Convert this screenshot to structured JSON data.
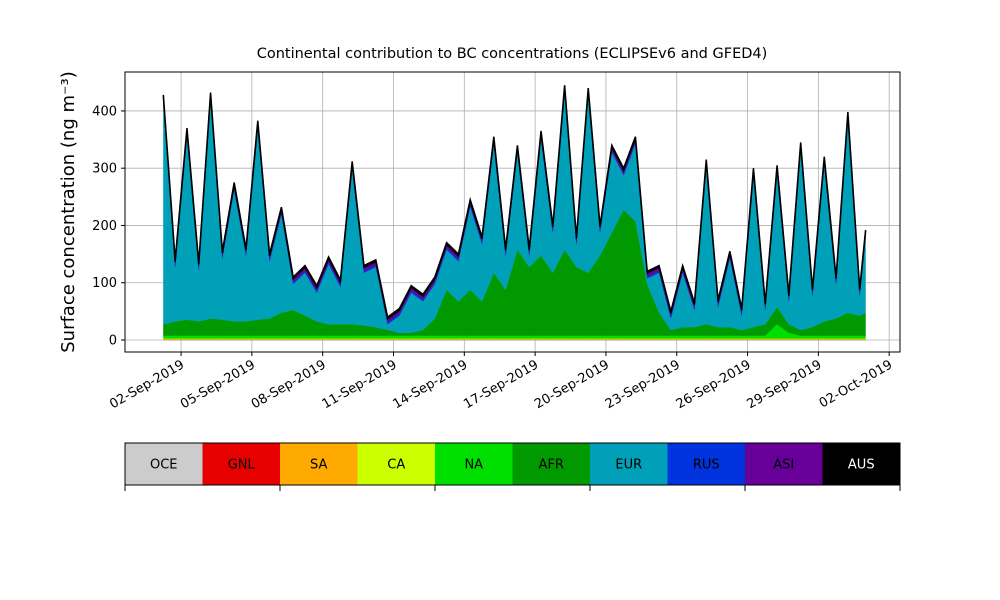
{
  "chart_data": {
    "type": "stacked_area",
    "title": "Continental contribution to BC concentrations (ECLIPSEv6 and GFED4)",
    "ylabel": "Surface concentration (ng m⁻³)",
    "x": [
      "2019-09-01T06:00",
      "2019-09-01T18:00",
      "2019-09-02T06:00",
      "2019-09-02T18:00",
      "2019-09-03T06:00",
      "2019-09-03T18:00",
      "2019-09-04T06:00",
      "2019-09-04T18:00",
      "2019-09-05T06:00",
      "2019-09-05T18:00",
      "2019-09-06T06:00",
      "2019-09-06T18:00",
      "2019-09-07T06:00",
      "2019-09-07T18:00",
      "2019-09-08T06:00",
      "2019-09-08T18:00",
      "2019-09-09T06:00",
      "2019-09-09T18:00",
      "2019-09-10T06:00",
      "2019-09-10T18:00",
      "2019-09-11T06:00",
      "2019-09-11T18:00",
      "2019-09-12T06:00",
      "2019-09-12T18:00",
      "2019-09-13T06:00",
      "2019-09-13T18:00",
      "2019-09-14T06:00",
      "2019-09-14T18:00",
      "2019-09-15T06:00",
      "2019-09-15T18:00",
      "2019-09-16T06:00",
      "2019-09-16T18:00",
      "2019-09-17T06:00",
      "2019-09-17T18:00",
      "2019-09-18T06:00",
      "2019-09-18T18:00",
      "2019-09-19T06:00",
      "2019-09-19T18:00",
      "2019-09-20T06:00",
      "2019-09-20T18:00",
      "2019-09-21T06:00",
      "2019-09-21T18:00",
      "2019-09-22T06:00",
      "2019-09-22T18:00",
      "2019-09-23T06:00",
      "2019-09-23T18:00",
      "2019-09-24T06:00",
      "2019-09-24T18:00",
      "2019-09-25T06:00",
      "2019-09-25T18:00",
      "2019-09-26T06:00",
      "2019-09-26T18:00",
      "2019-09-27T06:00",
      "2019-09-27T18:00",
      "2019-09-28T06:00",
      "2019-09-28T18:00",
      "2019-09-29T06:00",
      "2019-09-29T18:00",
      "2019-09-30T06:00",
      "2019-09-30T18:00",
      "2019-10-01T00:00"
    ],
    "series": [
      {
        "name": "OCE",
        "color": "#cccccc",
        "values": [
          0,
          0,
          0,
          0,
          0,
          0,
          0,
          0,
          0,
          0,
          0,
          0,
          0,
          0,
          0,
          0,
          0,
          0,
          0,
          0,
          0,
          0,
          0,
          0,
          0,
          0,
          0,
          0,
          0,
          0,
          0,
          0,
          0,
          0,
          0,
          0,
          0,
          0,
          0,
          0,
          0,
          0,
          0,
          0,
          0,
          0,
          0,
          0,
          0,
          0,
          0,
          0,
          0,
          0,
          0,
          0,
          0,
          0,
          0,
          0,
          0
        ]
      },
      {
        "name": "GNL",
        "color": "#e60000",
        "values": [
          0.5,
          0.5,
          0.5,
          0.5,
          0.5,
          0.5,
          0.5,
          0.5,
          0.5,
          0.5,
          0.5,
          0.5,
          0.5,
          0.5,
          0.5,
          0.5,
          0.5,
          0.5,
          0.5,
          0.5,
          0.5,
          0.5,
          0.5,
          0.5,
          0.5,
          0.5,
          0.5,
          0.5,
          0.5,
          0.5,
          0.5,
          0.5,
          0.5,
          0.5,
          0.5,
          0.5,
          0.5,
          0.5,
          0.5,
          0.5,
          0.5,
          0.5,
          0.5,
          0.5,
          0.5,
          0.5,
          0.5,
          0.5,
          0.5,
          0.5,
          0.5,
          0.5,
          0.5,
          0.5,
          0.5,
          0.5,
          0.5,
          0.5,
          0.5,
          0.5,
          0.5
        ]
      },
      {
        "name": "SA",
        "color": "#ffaa00",
        "values": [
          1,
          1,
          1,
          1,
          1,
          1,
          1,
          1,
          1,
          1,
          1,
          1,
          1,
          1,
          1,
          1,
          1,
          1,
          1,
          1,
          1,
          1,
          1,
          1,
          1,
          1,
          1,
          1,
          1,
          1,
          1,
          1,
          1,
          1,
          1,
          1,
          1,
          1,
          1,
          1,
          1,
          1,
          1,
          1,
          1,
          1,
          1,
          1,
          1,
          1,
          1,
          1,
          1,
          1,
          1,
          1,
          1,
          1,
          1,
          1,
          1
        ]
      },
      {
        "name": "CA",
        "color": "#ccff00",
        "values": [
          1,
          1,
          1,
          1,
          1,
          1,
          1,
          1,
          1,
          1,
          1,
          1,
          1,
          1,
          1,
          1,
          1,
          1,
          1,
          1,
          1,
          1,
          1,
          1,
          1,
          1,
          1,
          1,
          1,
          1,
          1,
          1,
          1,
          1,
          1,
          1,
          1,
          1,
          1,
          1,
          1,
          1,
          1,
          1,
          1,
          1,
          1,
          1,
          1,
          1,
          1,
          1,
          1,
          1,
          1,
          1,
          1,
          1,
          1,
          1,
          1
        ]
      },
      {
        "name": "NA",
        "color": "#00e000",
        "values": [
          5,
          5,
          5,
          5,
          5,
          5,
          5,
          5,
          5,
          5,
          5,
          5,
          5,
          5,
          5,
          5,
          5,
          5,
          5,
          5,
          5,
          5,
          5,
          5,
          5,
          5,
          5,
          5,
          5,
          5,
          5,
          5,
          5,
          5,
          5,
          5,
          5,
          5,
          5,
          5,
          5,
          5,
          5,
          5,
          5,
          5,
          5,
          5,
          5,
          5,
          5,
          5,
          25,
          10,
          5,
          5,
          5,
          5,
          5,
          5,
          5
        ]
      },
      {
        "name": "AFR",
        "color": "#009900",
        "values": [
          20,
          25,
          28,
          25,
          30,
          28,
          25,
          25,
          28,
          30,
          40,
          45,
          35,
          25,
          20,
          20,
          20,
          18,
          15,
          10,
          5,
          5,
          10,
          30,
          80,
          60,
          80,
          60,
          110,
          80,
          150,
          120,
          140,
          110,
          150,
          120,
          110,
          140,
          180,
          220,
          200,
          90,
          40,
          10,
          15,
          15,
          20,
          15,
          15,
          10,
          15,
          20,
          30,
          15,
          10,
          15,
          25,
          30,
          40,
          35,
          40
        ]
      },
      {
        "name": "EUR",
        "color": "#00a0b8",
        "values": [
          388,
          95,
          322,
          90,
          382,
          107,
          230,
          115,
          335,
          100,
          172,
          45,
          75,
          50,
          105,
          65,
          272,
          92,
          105,
          10,
          30,
          70,
          50,
          60,
          70,
          70,
          145,
          100,
          225,
          60,
          170,
          20,
          205,
          70,
          275,
          40,
          310,
          40,
          140,
          60,
          135,
          10,
          70,
          20,
          95,
          30,
          275,
          35,
          120,
          25,
          265,
          25,
          235,
          40,
          315,
          55,
          275,
          60,
          338,
          35,
          132
        ]
      },
      {
        "name": "RUS",
        "color": "#0033dd",
        "values": [
          3,
          3,
          3,
          3,
          3,
          3,
          3,
          3,
          3,
          3,
          3,
          3,
          3,
          3,
          3,
          3,
          3,
          3,
          3,
          3,
          3,
          3,
          3,
          3,
          3,
          3,
          3,
          3,
          3,
          3,
          3,
          3,
          3,
          3,
          3,
          3,
          3,
          3,
          3,
          3,
          3,
          3,
          3,
          3,
          3,
          3,
          3,
          3,
          3,
          3,
          3,
          3,
          3,
          3,
          3,
          3,
          3,
          3,
          3,
          3,
          3
        ]
      },
      {
        "name": "ASI",
        "color": "#660099",
        "values": [
          6.5,
          6.5,
          6.5,
          6.5,
          6.5,
          6.5,
          6.5,
          6.5,
          6.5,
          6.5,
          6.5,
          6.5,
          6.5,
          6.5,
          6.5,
          6.5,
          6.5,
          6.5,
          6.5,
          6.5,
          6.5,
          6.5,
          6.5,
          6.5,
          6.5,
          6.5,
          6.5,
          6.5,
          6.5,
          6.5,
          6.5,
          6.5,
          6.5,
          6.5,
          6.5,
          6.5,
          6.5,
          6.5,
          6.5,
          6.5,
          6.5,
          6.5,
          6.5,
          6.5,
          6.5,
          6.5,
          6.5,
          6.5,
          6.5,
          6.5,
          6.5,
          6.5,
          6.5,
          6.5,
          6.5,
          6.5,
          6.5,
          6.5,
          6.5,
          6.5,
          6.5
        ]
      },
      {
        "name": "AUS",
        "color": "#000000",
        "values": [
          3,
          3,
          3,
          3,
          3,
          3,
          3,
          3,
          3,
          3,
          3,
          3,
          3,
          3,
          3,
          3,
          3,
          3,
          3,
          3,
          3,
          3,
          3,
          3,
          3,
          3,
          3,
          3,
          3,
          3,
          3,
          3,
          3,
          3,
          3,
          3,
          3,
          3,
          3,
          3,
          3,
          3,
          3,
          3,
          3,
          3,
          3,
          3,
          3,
          3,
          3,
          3,
          3,
          3,
          3,
          3,
          3,
          3,
          3,
          3,
          3
        ]
      }
    ],
    "xlim": [
      "2019-08-30T15:00",
      "2019-10-02T11:00"
    ],
    "xticks": [
      {
        "value": "2019-09-02T00:00",
        "label": "02-Sep-2019"
      },
      {
        "value": "2019-09-05T00:00",
        "label": "05-Sep-2019"
      },
      {
        "value": "2019-09-08T00:00",
        "label": "08-Sep-2019"
      },
      {
        "value": "2019-09-11T00:00",
        "label": "11-Sep-2019"
      },
      {
        "value": "2019-09-14T00:00",
        "label": "14-Sep-2019"
      },
      {
        "value": "2019-09-17T00:00",
        "label": "17-Sep-2019"
      },
      {
        "value": "2019-09-20T00:00",
        "label": "20-Sep-2019"
      },
      {
        "value": "2019-09-23T00:00",
        "label": "23-Sep-2019"
      },
      {
        "value": "2019-09-26T00:00",
        "label": "26-Sep-2019"
      },
      {
        "value": "2019-09-29T00:00",
        "label": "29-Sep-2019"
      },
      {
        "value": "2019-10-02T00:00",
        "label": "02-Oct-2019"
      }
    ],
    "ylim": [
      -21,
      468
    ],
    "yticks": [
      0,
      100,
      200,
      300,
      400
    ],
    "grid": true
  }
}
